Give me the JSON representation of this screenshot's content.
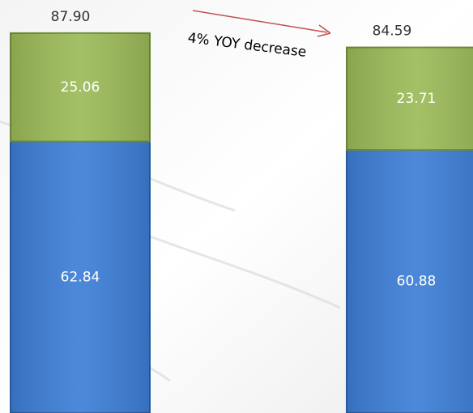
{
  "chart_data": {
    "type": "stacked_bar",
    "categories": [
      null,
      null
    ],
    "series": [
      {
        "color": "#3d7ed6",
        "values": [
          62.84,
          60.88
        ]
      },
      {
        "color": "#9bbb59",
        "values": [
          25.06,
          23.71
        ]
      }
    ],
    "totals": [
      87.9,
      84.59
    ],
    "total_labels": [
      "87.90",
      "84.59"
    ],
    "annotation": "4% YOY decrease",
    "annotation_color": "#c0504d",
    "ylim": [
      0,
      95
    ]
  }
}
